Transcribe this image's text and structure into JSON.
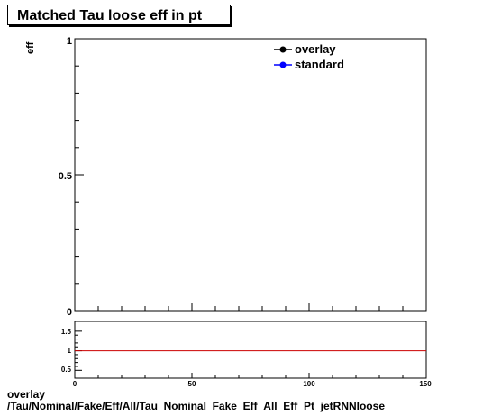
{
  "chart_data": [
    {
      "type": "line",
      "title": "Matched Tau loose eff in pt",
      "ylabel": "eff",
      "xlabel": "",
      "xlim": [
        0,
        150
      ],
      "ylim": [
        0,
        1
      ],
      "y_ticks": [
        "0",
        "0.5",
        "1"
      ],
      "series": [
        {
          "name": "overlay",
          "color": "#000000",
          "x": [],
          "y": []
        },
        {
          "name": "standard",
          "color": "#0000ff",
          "x": [],
          "y": []
        }
      ],
      "legend_position": "top-right",
      "grid": false
    },
    {
      "type": "line",
      "title": "",
      "xlim": [
        0,
        150
      ],
      "ylim": [
        0.3,
        1.75
      ],
      "x_ticks": [
        "0",
        "50",
        "100",
        "150"
      ],
      "y_ticks": [
        "0.5",
        "1",
        "1.5"
      ],
      "reference_line": {
        "y": 1,
        "color": "#cc0000"
      },
      "grid": false
    }
  ],
  "footer": {
    "line1": "overlay",
    "line2": "/Tau/Nominal/Fake/Eff/All/Tau_Nominal_Fake_Eff_All_Eff_Pt_jetRNNloose"
  }
}
